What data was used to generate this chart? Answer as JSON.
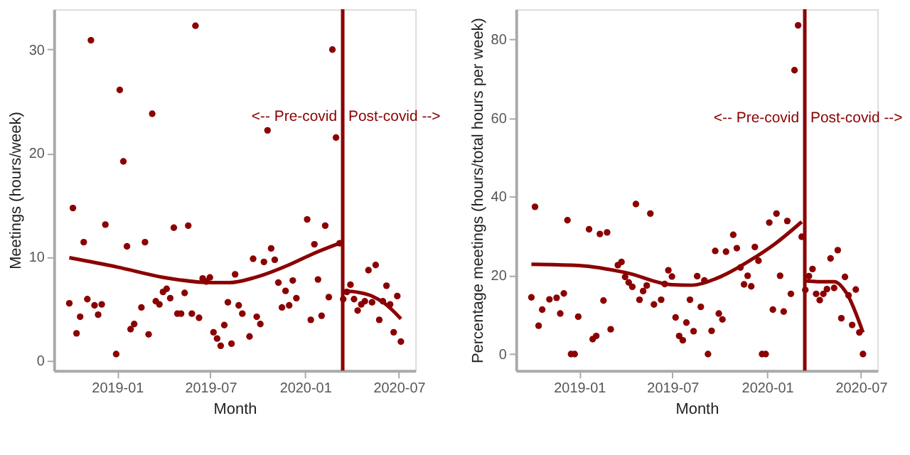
{
  "chart_data": [
    {
      "type": "scatter",
      "xlabel": "Month",
      "ylabel": "Meetings (hours/week)",
      "xlim": [
        "2018-08-31",
        "2020-08-02"
      ],
      "ylim": [
        -1.0,
        33.9
      ],
      "xticks": [
        {
          "value": "2019-01-01",
          "label": "2019-01"
        },
        {
          "value": "2019-07-01",
          "label": "2019-07"
        },
        {
          "value": "2020-01-01",
          "label": "2020-01"
        },
        {
          "value": "2020-07-01",
          "label": "2020-07"
        }
      ],
      "yticks": [
        0,
        10,
        20,
        30
      ],
      "grid": false,
      "marker": "circle",
      "ref_lines": [
        {
          "axis": "x",
          "value": "2020-03-14",
          "color": "#8b0000"
        }
      ],
      "annotations": [
        {
          "text": "<-- Pre-covid",
          "x": "2020-03-14",
          "y": 23.5
        },
        {
          "text": "Post-covid -->",
          "x": "2020-03-14",
          "y": 23.5
        }
      ],
      "series": [
        {
          "color": "#8b0000",
          "x": [
            "2018-09-30",
            "2018-10-07",
            "2018-10-14",
            "2018-10-21",
            "2018-10-28",
            "2018-11-04",
            "2018-11-11",
            "2018-11-18",
            "2018-11-25",
            "2018-12-02",
            "2018-12-09",
            "2018-12-30",
            "2019-01-06",
            "2019-01-13",
            "2019-01-20",
            "2019-01-27",
            "2019-02-03",
            "2019-02-17",
            "2019-02-24",
            "2019-03-03",
            "2019-03-10",
            "2019-03-17",
            "2019-03-24",
            "2019-03-31",
            "2019-04-07",
            "2019-04-14",
            "2019-04-21",
            "2019-04-28",
            "2019-05-05",
            "2019-05-12",
            "2019-05-19",
            "2019-05-26",
            "2019-06-02",
            "2019-06-09",
            "2019-06-16",
            "2019-06-23",
            "2019-06-30",
            "2019-07-07",
            "2019-07-14",
            "2019-07-21",
            "2019-07-28",
            "2019-08-04",
            "2019-08-11",
            "2019-08-18",
            "2019-08-25",
            "2019-09-01",
            "2019-09-15",
            "2019-09-22",
            "2019-09-29",
            "2019-10-06",
            "2019-10-13",
            "2019-10-20",
            "2019-10-27",
            "2019-11-03",
            "2019-11-10",
            "2019-11-17",
            "2019-11-24",
            "2019-12-01",
            "2019-12-08",
            "2019-12-15",
            "2020-01-05",
            "2020-01-12",
            "2020-01-19",
            "2020-01-26",
            "2020-02-02",
            "2020-02-09",
            "2020-02-16",
            "2020-02-23",
            "2020-03-01",
            "2020-03-08",
            "2020-03-15",
            "2020-03-22",
            "2020-03-29",
            "2020-04-05",
            "2020-04-12",
            "2020-04-19",
            "2020-04-26",
            "2020-05-03",
            "2020-05-10",
            "2020-05-17",
            "2020-05-24",
            "2020-05-31",
            "2020-06-07",
            "2020-06-14",
            "2020-06-21",
            "2020-06-28",
            "2020-07-05"
          ],
          "values": [
            5.5,
            14.7,
            2.6,
            4.2,
            11.4,
            5.9,
            30.9,
            5.3,
            4.4,
            5.4,
            13.1,
            0.6,
            26.1,
            19.2,
            11.0,
            3.0,
            3.5,
            5.1,
            11.4,
            2.5,
            23.8,
            5.7,
            5.4,
            6.6,
            6.9,
            6.0,
            12.8,
            4.5,
            4.5,
            6.5,
            13.0,
            4.5,
            32.3,
            4.1,
            7.9,
            7.6,
            8.0,
            2.7,
            2.1,
            1.4,
            3.4,
            5.6,
            1.6,
            8.3,
            5.3,
            4.5,
            2.3,
            9.8,
            4.2,
            3.5,
            9.5,
            22.2,
            10.8,
            9.7,
            7.5,
            5.1,
            6.7,
            5.3,
            7.7,
            6.0,
            13.6,
            3.9,
            11.2,
            7.8,
            4.3,
            13.0,
            6.1,
            30.0,
            21.5,
            11.3,
            5.9,
            6.6,
            7.3,
            5.9,
            4.8,
            5.4,
            5.7,
            8.7,
            5.6,
            9.2,
            3.9,
            5.7,
            7.2,
            5.4,
            2.7,
            6.2,
            1.8
          ]
        },
        {
          "type": "line",
          "color": "#8b0000",
          "x": [
            "2018-09-30",
            "2019-01-01",
            "2019-04-01",
            "2019-07-01",
            "2019-08-08",
            "2019-09-26",
            "2019-11-30",
            "2020-01-17",
            "2020-03-08"
          ],
          "values": [
            9.9,
            9.0,
            8.0,
            7.5,
            7.5,
            8.0,
            9.2,
            10.3,
            11.3
          ],
          "marker": "none",
          "line_style": "solid"
        },
        {
          "type": "line",
          "color": "#8b0000",
          "x": [
            "2020-03-15",
            "2020-04-08",
            "2020-05-10",
            "2020-06-03",
            "2020-07-05"
          ],
          "values": [
            6.7,
            6.6,
            6.2,
            5.5,
            4.0
          ],
          "marker": "none",
          "line_style": "solid"
        }
      ]
    },
    {
      "type": "scatter",
      "xlabel": "Month",
      "ylabel": "Percentage meetings (hours/total hours per week)",
      "xlim": [
        "2018-08-31",
        "2020-08-02"
      ],
      "ylim": [
        -4.2,
        87.6
      ],
      "xticks": [
        {
          "value": "2019-01-01",
          "label": "2019-01"
        },
        {
          "value": "2019-07-01",
          "label": "2019-07"
        },
        {
          "value": "2020-01-01",
          "label": "2020-01"
        },
        {
          "value": "2020-07-01",
          "label": "2020-07"
        }
      ],
      "yticks": [
        0,
        20,
        40,
        60,
        80
      ],
      "grid": false,
      "marker": "circle",
      "ref_lines": [
        {
          "axis": "x",
          "value": "2020-03-14",
          "color": "#8b0000"
        }
      ],
      "annotations": [
        {
          "text": "<-- Pre-covid",
          "x": "2020-03-14",
          "y": 60
        },
        {
          "text": "Post-covid -->",
          "x": "2020-03-14",
          "y": 60
        }
      ],
      "series": [
        {
          "color": "#8b0000",
          "x": [
            "2018-09-30",
            "2018-10-07",
            "2018-10-14",
            "2018-10-21",
            "2018-11-04",
            "2018-11-18",
            "2018-11-25",
            "2018-12-02",
            "2018-12-09",
            "2018-12-16",
            "2018-12-23",
            "2018-12-30",
            "2019-01-20",
            "2019-01-27",
            "2019-02-03",
            "2019-02-10",
            "2019-02-17",
            "2019-02-24",
            "2019-03-03",
            "2019-03-17",
            "2019-03-24",
            "2019-03-31",
            "2019-04-07",
            "2019-04-14",
            "2019-04-21",
            "2019-04-28",
            "2019-05-05",
            "2019-05-12",
            "2019-05-19",
            "2019-05-26",
            "2019-06-09",
            "2019-06-16",
            "2019-06-23",
            "2019-06-30",
            "2019-07-07",
            "2019-07-14",
            "2019-07-21",
            "2019-07-28",
            "2019-08-04",
            "2019-08-11",
            "2019-08-18",
            "2019-08-25",
            "2019-09-01",
            "2019-09-08",
            "2019-09-15",
            "2019-09-22",
            "2019-09-29",
            "2019-10-06",
            "2019-10-13",
            "2019-10-27",
            "2019-11-03",
            "2019-11-10",
            "2019-11-17",
            "2019-11-24",
            "2019-12-01",
            "2019-12-08",
            "2019-12-15",
            "2019-12-22",
            "2019-12-29",
            "2020-01-05",
            "2020-01-12",
            "2020-01-19",
            "2020-01-26",
            "2020-02-02",
            "2020-02-09",
            "2020-02-16",
            "2020-02-23",
            "2020-03-01",
            "2020-03-08",
            "2020-03-15",
            "2020-03-22",
            "2020-03-29",
            "2020-04-05",
            "2020-04-12",
            "2020-04-19",
            "2020-04-26",
            "2020-05-03",
            "2020-05-10",
            "2020-05-17",
            "2020-05-24",
            "2020-05-31",
            "2020-06-07",
            "2020-06-14",
            "2020-06-21",
            "2020-06-28",
            "2020-07-05"
          ],
          "values": [
            14.4,
            37.4,
            7.2,
            11.3,
            13.9,
            14.3,
            10.3,
            15.4,
            34.0,
            0,
            0,
            9.5,
            31.7,
            3.8,
            4.6,
            30.5,
            13.6,
            30.9,
            6.3,
            22.6,
            23.4,
            19.6,
            18.2,
            17.1,
            38.1,
            13.8,
            16.0,
            17.4,
            35.7,
            12.6,
            13.8,
            17.8,
            21.3,
            19.7,
            9.3,
            4.6,
            3.5,
            8.0,
            13.8,
            5.8,
            19.8,
            12.0,
            18.7,
            0,
            5.9,
            26.2,
            10.3,
            8.8,
            26.0,
            30.3,
            26.9,
            22.0,
            17.7,
            19.9,
            17.2,
            27.2,
            23.7,
            0,
            0,
            33.4,
            11.3,
            35.7,
            19.9,
            10.8,
            33.8,
            15.3,
            72.1,
            83.5,
            29.8,
            16.3,
            19.8,
            21.6,
            15.3,
            13.7,
            15.3,
            16.5,
            24.3,
            16.8,
            26.4,
            9.1,
            19.6,
            14.9,
            7.4,
            16.4,
            5.5,
            0
          ]
        },
        {
          "type": "line",
          "color": "#8b0000",
          "x": [
            "2018-09-30",
            "2019-01-01",
            "2019-04-01",
            "2019-07-01",
            "2019-08-08",
            "2019-09-26",
            "2019-11-30",
            "2020-01-17",
            "2020-03-08"
          ],
          "values": [
            22.8,
            22.5,
            20.7,
            17.6,
            17.5,
            19.3,
            23.9,
            28.1,
            33.6
          ],
          "marker": "none",
          "line_style": "solid"
        },
        {
          "type": "line",
          "color": "#8b0000",
          "x": [
            "2020-03-15",
            "2020-04-08",
            "2020-05-10",
            "2020-06-03",
            "2020-07-05"
          ],
          "values": [
            18.6,
            18.4,
            18.4,
            15.5,
            5.5
          ],
          "marker": "none",
          "line_style": "solid"
        }
      ]
    }
  ]
}
